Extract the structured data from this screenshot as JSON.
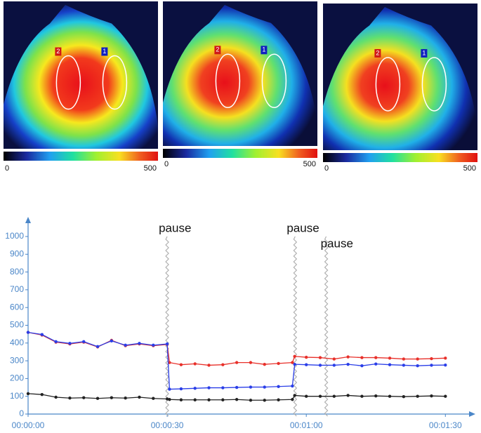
{
  "images": [
    {
      "labels": [
        "2",
        "1"
      ],
      "scale_min": 0,
      "scale_max": 500
    },
    {
      "labels": [
        "2",
        "1"
      ],
      "scale_min": 0,
      "scale_max": 500
    },
    {
      "labels": [
        "2",
        "1"
      ],
      "scale_min": 0,
      "scale_max": 500
    }
  ],
  "chart_data": {
    "type": "line",
    "x": [
      0,
      3,
      6,
      9,
      12,
      15,
      18,
      21,
      24,
      27,
      30,
      30.5,
      33,
      36,
      39,
      42,
      45,
      48,
      51,
      54,
      57,
      57.5,
      60,
      63,
      66,
      69,
      72,
      75,
      78,
      81,
      84,
      87,
      90
    ],
    "series": [
      {
        "color": "#e8302a",
        "values": [
          460,
          445,
          405,
          395,
          405,
          378,
          415,
          385,
          395,
          385,
          392,
          290,
          278,
          283,
          275,
          278,
          290,
          290,
          280,
          285,
          290,
          325,
          320,
          318,
          310,
          322,
          318,
          318,
          315,
          310,
          310,
          312,
          315
        ]
      },
      {
        "color": "#2a3ee8",
        "values": [
          460,
          448,
          408,
          398,
          408,
          380,
          412,
          388,
          398,
          388,
          395,
          140,
          142,
          145,
          148,
          148,
          150,
          152,
          152,
          155,
          158,
          280,
          278,
          275,
          275,
          280,
          272,
          282,
          278,
          275,
          272,
          275,
          276
        ]
      },
      {
        "color": "#222222",
        "values": [
          115,
          110,
          95,
          90,
          92,
          88,
          92,
          90,
          95,
          88,
          85,
          82,
          80,
          80,
          80,
          80,
          82,
          78,
          78,
          80,
          82,
          105,
          100,
          100,
          100,
          105,
          100,
          102,
          100,
          98,
          100,
          102,
          100
        ]
      }
    ],
    "xlim": [
      0,
      94.5
    ],
    "xticks": [
      {
        "value": 0,
        "label": "00:00:00"
      },
      {
        "value": 30,
        "label": "00:00:30"
      },
      {
        "value": 60,
        "label": "00:01:00"
      },
      {
        "value": 90,
        "label": "00:01:30"
      }
    ],
    "ylim": [
      0,
      1000
    ],
    "yticks": [
      0,
      100,
      200,
      300,
      400,
      500,
      600,
      700,
      800,
      900,
      1000
    ],
    "annotations": [
      {
        "x": 30,
        "label": "pause"
      },
      {
        "x": 57.6,
        "label": "pause"
      },
      {
        "x": 64.3,
        "label": "pause"
      }
    ]
  }
}
